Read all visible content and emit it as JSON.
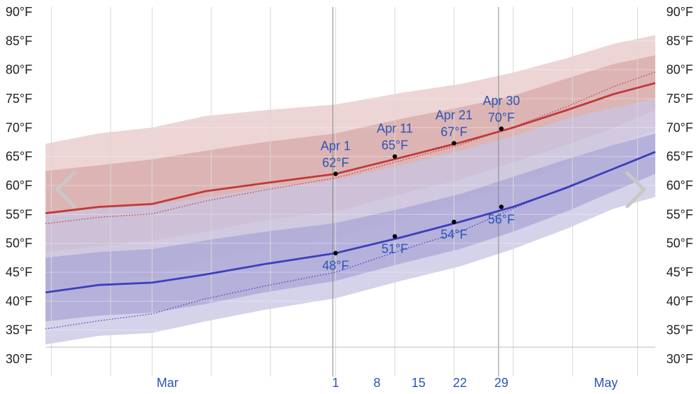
{
  "nav": {
    "prev_icon": "chevron-left-icon",
    "next_icon": "chevron-right-icon"
  },
  "chart_data": {
    "type": "line",
    "title": "",
    "xlabel": "",
    "ylabel": "",
    "y_unit": "°F",
    "ylim": [
      30,
      90
    ],
    "y_ticks": [
      "30°F",
      "35°F",
      "40°F",
      "45°F",
      "50°F",
      "55°F",
      "60°F",
      "65°F",
      "70°F",
      "75°F",
      "80°F",
      "85°F",
      "90°F"
    ],
    "y_tick_values": [
      30,
      35,
      40,
      45,
      50,
      55,
      60,
      65,
      70,
      75,
      80,
      85,
      90
    ],
    "xlim": [
      "Feb 11",
      "May 16"
    ],
    "x_ticks": [
      {
        "date": "Mar 1",
        "label": "Mar"
      },
      {
        "date": "Apr 1",
        "label": "1"
      },
      {
        "date": "Apr 8",
        "label": "8"
      },
      {
        "date": "Apr 15",
        "label": "15"
      },
      {
        "date": "Apr 22",
        "label": "22"
      },
      {
        "date": "Apr 29",
        "label": "29"
      },
      {
        "date": "May 15",
        "label": "May"
      }
    ],
    "x_ticks_days": [
      18,
      49,
      56,
      63,
      70,
      77,
      93
    ],
    "vertical_gridlines_days": [
      1,
      11,
      18,
      28,
      38,
      49,
      59,
      69,
      79,
      89,
      100
    ],
    "series_x_days": [
      0,
      10,
      20,
      30,
      40,
      49,
      60,
      70,
      80,
      90,
      100
    ],
    "series": [
      {
        "name": "",
        "role": "high-average",
        "color": "#c0393b",
        "values": [
          55.2,
          56.3,
          56.8,
          59.0,
          60.4,
          62.0,
          64.8,
          67.4,
          70.0,
          73.0,
          75.8,
          77.7
        ]
      },
      {
        "name": "",
        "role": "low-average",
        "color": "#3d3fbb",
        "values": [
          41.5,
          42.8,
          43.2,
          44.6,
          46.4,
          48.3,
          51.0,
          53.7,
          56.3,
          59.6,
          62.9,
          65.8
        ]
      },
      {
        "name": "",
        "role": "high-dotted",
        "color": "#c0393b",
        "style": "dotted",
        "values": [
          53.4,
          54.5,
          55.1,
          57.3,
          59.2,
          61.3,
          64.3,
          67.0,
          70.1,
          73.6,
          77.1,
          79.6
        ]
      },
      {
        "name": "",
        "role": "low-dotted",
        "color": "#3d3fbb",
        "style": "dotted",
        "values": [
          35.2,
          36.6,
          37.8,
          40.4,
          42.6,
          45.0,
          48.8,
          52.0,
          56.0,
          59.8,
          62.9,
          65.8
        ]
      }
    ],
    "x_days_for_values": [
      0,
      9,
      18,
      27,
      37,
      49,
      60,
      70,
      79,
      88,
      96,
      103
    ],
    "bands": [
      {
        "color": "#e8c7c7",
        "upper": [
          67.2,
          69,
          70,
          72,
          73,
          74,
          76,
          77.5,
          79.5,
          82,
          84.5,
          86
        ],
        "lower": [
          42,
          43.5,
          44.5,
          47,
          49,
          51,
          54,
          57,
          60,
          63.5,
          67,
          69.5
        ]
      },
      {
        "color": "#d7a8a8",
        "upper": [
          62.5,
          63.5,
          64.5,
          66,
          67.5,
          69,
          71.5,
          73.5,
          75.5,
          78.5,
          81,
          82.5
        ],
        "lower": [
          48.5,
          49.5,
          50.5,
          52,
          54,
          55.5,
          58.5,
          61,
          64,
          67,
          70,
          73
        ]
      },
      {
        "color": "#c7c4e3",
        "upper": [
          55,
          56,
          56.5,
          58,
          59.5,
          61,
          63.5,
          66,
          68.5,
          71.5,
          73.5,
          75
        ],
        "lower": [
          32.5,
          34,
          34.5,
          36.5,
          38.5,
          40.5,
          43.5,
          46,
          49,
          52.5,
          56,
          58
        ]
      },
      {
        "color": "#a9a6d6",
        "upper": [
          47.5,
          48.5,
          49,
          50.5,
          52,
          53.5,
          56,
          58.5,
          61.5,
          64.5,
          67,
          69
        ],
        "lower": [
          36.5,
          37.5,
          38,
          39.5,
          41.5,
          43.5,
          46.5,
          49,
          52,
          55.5,
          59,
          62
        ]
      }
    ],
    "highlighted_points": [
      {
        "day": 49,
        "value": 62,
        "label_date": "Apr 1",
        "label_value": "62°F",
        "position": "above"
      },
      {
        "day": 59,
        "value": 65,
        "label_date": "Apr 11",
        "label_value": "65°F",
        "position": "above"
      },
      {
        "day": 69,
        "value": 67.3,
        "label_date": "Apr 21",
        "label_value": "67°F",
        "position": "above"
      },
      {
        "day": 77,
        "value": 69.8,
        "label_date": "Apr 30",
        "label_value": "70°F",
        "position": "above"
      },
      {
        "day": 49,
        "value": 48.3,
        "label_value": "48°F",
        "position": "below"
      },
      {
        "day": 59,
        "value": 51.2,
        "label_value": "51°F",
        "position": "below"
      },
      {
        "day": 69,
        "value": 53.7,
        "label_value": "54°F",
        "position": "below"
      },
      {
        "day": 77,
        "value": 56.3,
        "label_value": "56°F",
        "position": "below"
      }
    ],
    "grid": true
  }
}
